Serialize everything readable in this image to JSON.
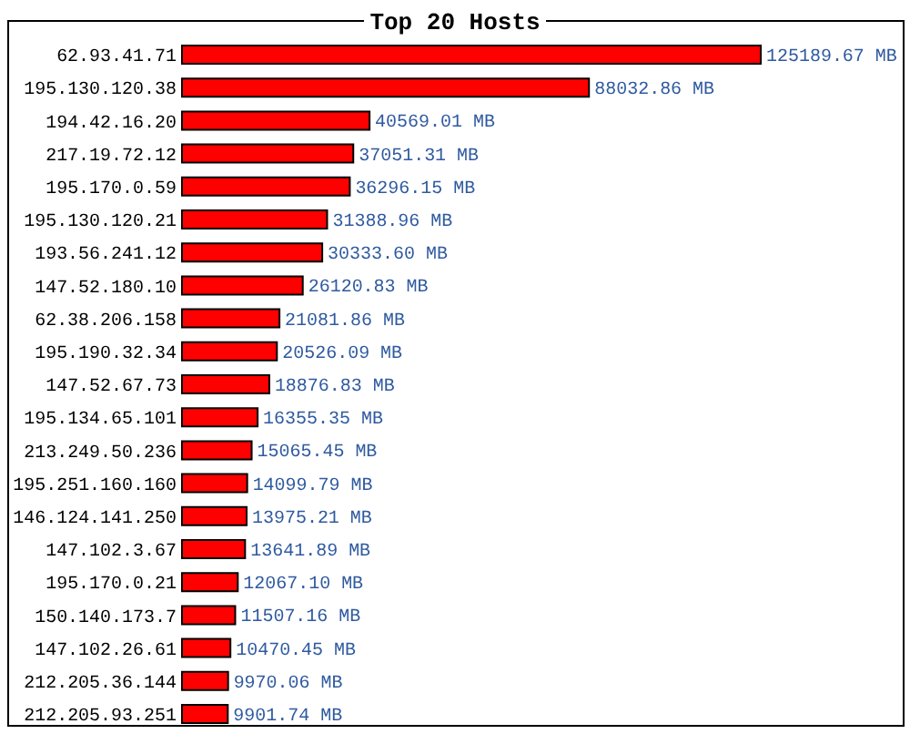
{
  "chart_data": {
    "type": "bar",
    "orientation": "horizontal",
    "title": "Top 20 Hosts",
    "categories": [
      "62.93.41.71",
      "195.130.120.38",
      "194.42.16.20",
      "217.19.72.12",
      "195.170.0.59",
      "195.130.120.21",
      "193.56.241.12",
      "147.52.180.10",
      "62.38.206.158",
      "195.190.32.34",
      "147.52.67.73",
      "195.134.65.101",
      "213.249.50.236",
      "195.251.160.160",
      "146.124.141.250",
      "147.102.3.67",
      "195.170.0.21",
      "150.140.173.7",
      "147.102.26.61",
      "212.205.36.144",
      "212.205.93.251"
    ],
    "values": [
      125189.67,
      88032.86,
      40569.01,
      37051.31,
      36296.15,
      31388.96,
      30333.6,
      26120.83,
      21081.86,
      20526.09,
      18876.83,
      16355.35,
      15065.45,
      14099.79,
      13975.21,
      13641.89,
      12067.1,
      11507.16,
      10470.45,
      9970.06,
      9901.74
    ],
    "value_labels": [
      "125189.67 MB",
      "88032.86 MB",
      "40569.01 MB",
      "37051.31 MB",
      "36296.15 MB",
      "31388.96 MB",
      "30333.60 MB",
      "26120.83 MB",
      "21081.86 MB",
      "20526.09 MB",
      "18876.83 MB",
      "16355.35 MB",
      "15065.45 MB",
      "14099.79 MB",
      "13975.21 MB",
      "13641.89 MB",
      "12067.10 MB",
      "11507.16 MB",
      "10470.45 MB",
      "9970.06 MB",
      "9901.74 MB"
    ],
    "color": "#ff0000"
  }
}
